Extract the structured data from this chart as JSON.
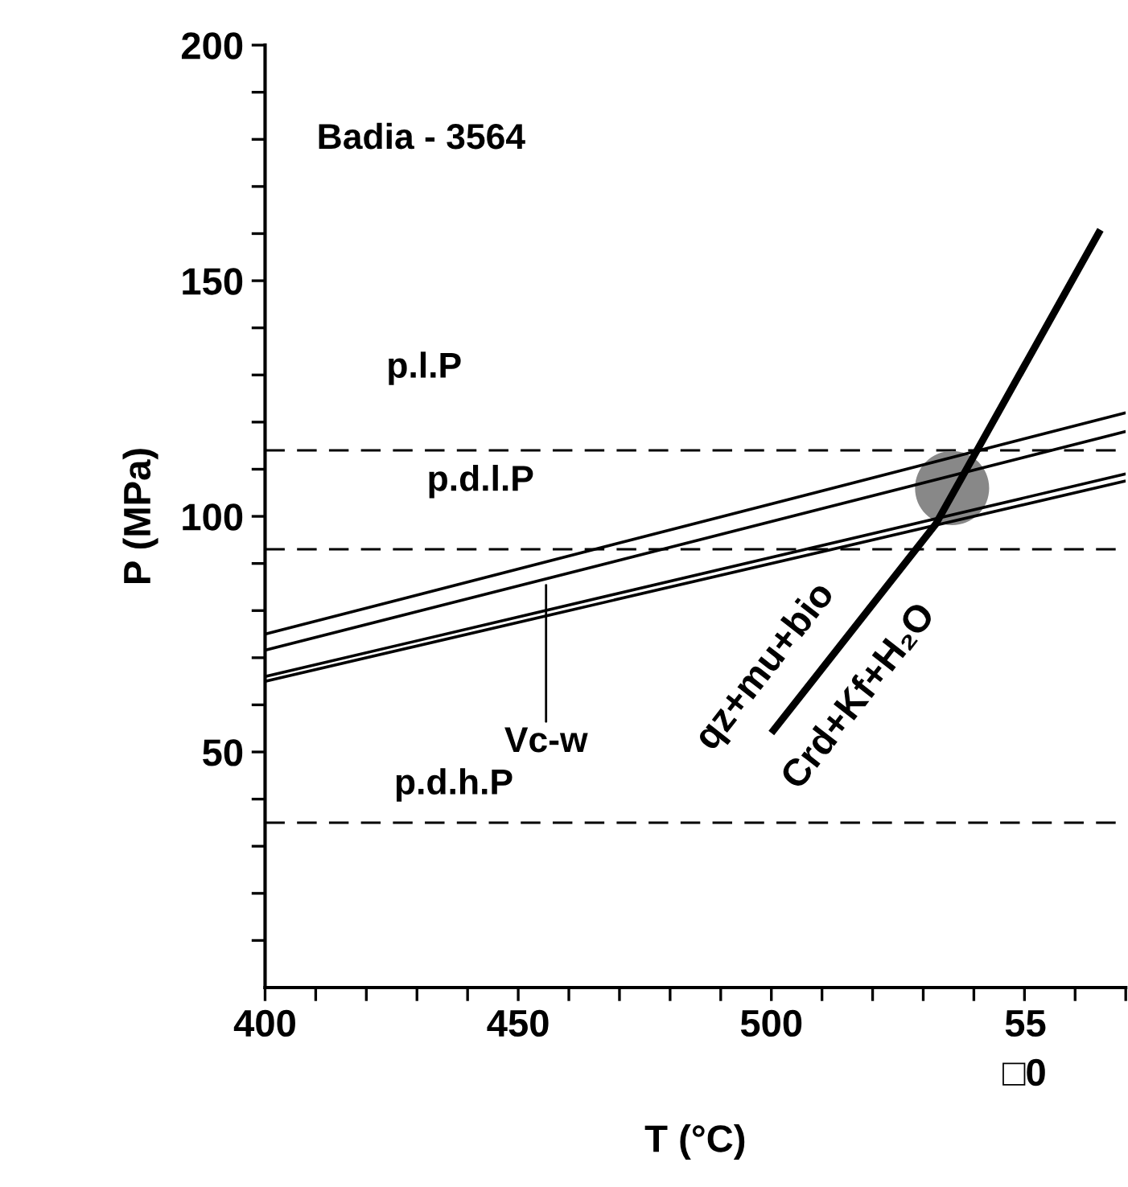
{
  "chart_data": {
    "type": "line",
    "title": "Badia - 3564",
    "xlabel": "T (°C)",
    "ylabel": "P (MPa)",
    "xlim": [
      400,
      570
    ],
    "ylim": [
      0,
      200
    ],
    "xticks": [
      400,
      {
        "value": 410,
        "label": null
      },
      {
        "value": 420,
        "label": null
      },
      {
        "value": 430,
        "label": null
      },
      {
        "value": 440,
        "label": null
      },
      450,
      {
        "value": 460,
        "label": null
      },
      {
        "value": 470,
        "label": null
      },
      {
        "value": 480,
        "label": null
      },
      {
        "value": 490,
        "label": null
      },
      500,
      {
        "value": 510,
        "label": null
      },
      {
        "value": 520,
        "label": null
      },
      {
        "value": 530,
        "label": null
      },
      {
        "value": 540,
        "label": null
      },
      {
        "value": 550,
        "label": "55\n□0"
      },
      {
        "value": 560,
        "label": null
      },
      {
        "value": 570,
        "label": null
      }
    ],
    "yticks": [
      {
        "value": 10,
        "label": null
      },
      {
        "value": 20,
        "label": null
      },
      {
        "value": 30,
        "label": null
      },
      {
        "value": 40,
        "label": null
      },
      50,
      {
        "value": 60,
        "label": null
      },
      {
        "value": 70,
        "label": null
      },
      {
        "value": 80,
        "label": null
      },
      {
        "value": 90,
        "label": null
      },
      100,
      {
        "value": 110,
        "label": null
      },
      {
        "value": 120,
        "label": null
      },
      {
        "value": 130,
        "label": null
      },
      {
        "value": 140,
        "label": null
      },
      150,
      {
        "value": 160,
        "label": null
      },
      {
        "value": 170,
        "label": null
      },
      {
        "value": 180,
        "label": null
      },
      {
        "value": 190,
        "label": null
      },
      200
    ],
    "grid": false,
    "legend": false,
    "marker": "none",
    "line_style": "solid",
    "series": [
      {
        "color": "#000000",
        "x": [
          400,
          570
        ],
        "values": [
          75,
          122
        ]
      },
      {
        "color": "#000000",
        "x": [
          400,
          570
        ],
        "values": [
          71.6,
          118
        ]
      },
      {
        "color": "#000000",
        "x": [
          400,
          570
        ],
        "values": [
          66,
          109
        ]
      },
      {
        "color": "#000000",
        "x": [
          400,
          570
        ],
        "values": [
          65,
          107.5
        ]
      },
      {
        "color": "#000000",
        "x": [
          500,
          532.5,
          565
        ],
        "values": [
          54,
          98.4,
          160.8
        ]
      },
      {
        "type": "scatter",
        "marker": "circle",
        "color": "#888888",
        "x": [
          535.7
        ],
        "values": [
          106
        ]
      }
    ],
    "ref_lines": [
      {
        "axis": "y",
        "value": 114,
        "color": "#000000",
        "line_style": "dashed"
      },
      {
        "axis": "y",
        "value": 93,
        "color": "#000000",
        "line_style": "dashed"
      },
      {
        "axis": "y",
        "value": 35,
        "color": "#000000",
        "line_style": "dashed"
      }
    ],
    "annotations": [
      "p.l.P",
      "p.d.l.P",
      "p.d.h.P",
      {
        "text": "Vc-w",
        "x": 455.5,
        "y": 85.4
      },
      "qz+mu+bio",
      "Crd+Kf+H₂O"
    ]
  }
}
